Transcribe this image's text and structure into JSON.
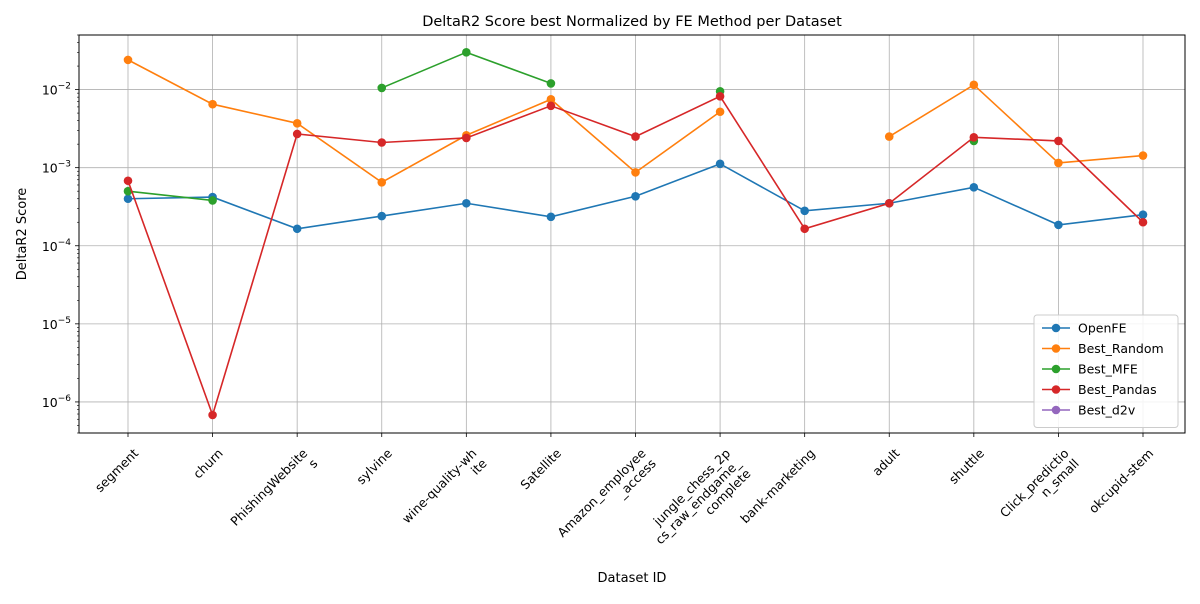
{
  "chart_data": {
    "type": "line",
    "title": "DeltaR2 Score best Normalized by FE Method per Dataset",
    "xlabel": "Dataset ID",
    "ylabel": "DeltaR2 Score",
    "yscale": "log",
    "ylim": [
      4e-07,
      0.05
    ],
    "grid": true,
    "legend_position": "lower-right",
    "categories": [
      "segment",
      "churn",
      "PhishingWebsite\ns",
      "sylvine",
      "wine-quality-wh\nite",
      "Satellite",
      "Amazon_employee\n_access",
      "jungle_chess_2p\ncs_raw_endgame_\ncomplete",
      "bank-marketing",
      "adult",
      "shuttle",
      "Click_predictio\nn_small",
      "okcupid-stem"
    ],
    "y_ticks": [
      {
        "value": 1e-06,
        "base": "10",
        "exp": "−6"
      },
      {
        "value": 1e-05,
        "base": "10",
        "exp": "−5"
      },
      {
        "value": 0.0001,
        "base": "10",
        "exp": "−4"
      },
      {
        "value": 0.001,
        "base": "10",
        "exp": "−3"
      },
      {
        "value": 0.01,
        "base": "10",
        "exp": "−2"
      }
    ],
    "series": [
      {
        "name": "OpenFE",
        "color": "#1f77b4",
        "values": [
          0.0004,
          0.00042,
          0.000165,
          0.00024,
          0.00035,
          0.000235,
          0.00043,
          0.00112,
          0.00028,
          0.00035,
          0.00056,
          0.000185,
          0.00025
        ]
      },
      {
        "name": "Best_Random",
        "color": "#ff7f0e",
        "values": [
          0.024,
          0.0065,
          0.0037,
          0.00065,
          0.0026,
          0.0075,
          0.00087,
          0.0052,
          null,
          0.0025,
          0.0115,
          0.00115,
          0.00143
        ]
      },
      {
        "name": "Best_MFE",
        "color": "#2ca02c",
        "values": [
          0.0005,
          0.00038,
          null,
          0.0105,
          0.03,
          0.012,
          null,
          0.0095,
          null,
          null,
          0.0022,
          null,
          null
        ]
      },
      {
        "name": "Best_Pandas",
        "color": "#d62728",
        "values": [
          0.00068,
          6.8e-07,
          0.0027,
          0.0021,
          0.0024,
          0.0062,
          0.0025,
          0.0082,
          0.000165,
          0.00035,
          0.00245,
          0.0022,
          0.0002
        ]
      },
      {
        "name": "Best_d2v",
        "color": "#9467bd",
        "values": [
          null,
          null,
          null,
          null,
          null,
          null,
          null,
          null,
          null,
          null,
          null,
          null,
          null
        ]
      }
    ]
  }
}
